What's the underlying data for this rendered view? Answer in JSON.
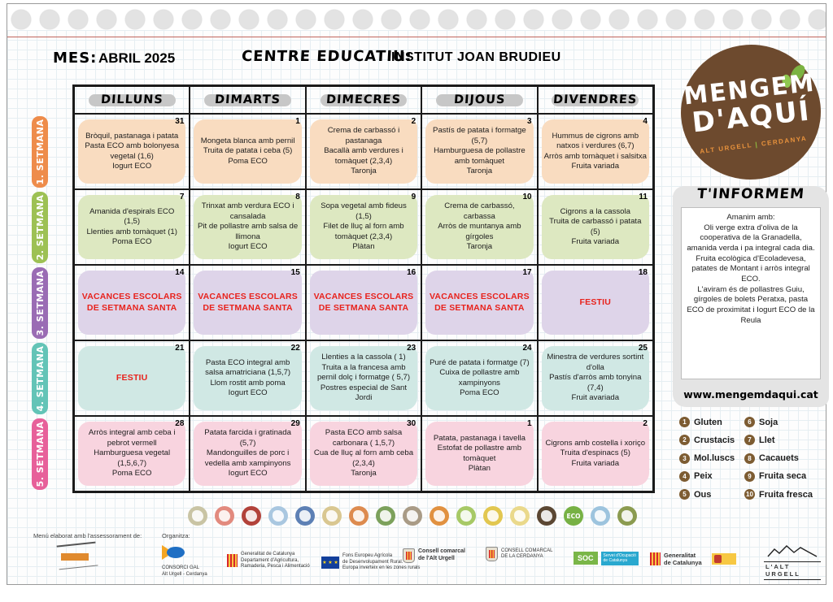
{
  "header": {
    "mes_label": "MES:",
    "mes_value": "ABRIL 2025",
    "centre_label": "CENTRE EDUCATIU:",
    "centre_value": "INSTITUT JOAN BRUDIEU"
  },
  "logo": {
    "line1": "MENGEM",
    "line2": "D'AQUÍ",
    "subtitle_left": "ALT URGELL",
    "subtitle_sep": "|",
    "subtitle_right": "CERDANYA"
  },
  "calendar": {
    "day_headers": [
      "DILLUNS",
      "DIMARTS",
      "DIMECRES",
      "DIJOUS",
      "DIVENDRES"
    ],
    "weeks": [
      {
        "label": "1. SETMANA",
        "tab_color": "#ee8c4b",
        "cell_color": "#f9dcc0",
        "days": [
          {
            "num": "31",
            "text": "Bròquil, pastanaga i patata\nPasta ECO amb bolonyesa vegetal (1,6)\nIogurt ECO"
          },
          {
            "num": "1",
            "text": "Mongeta blanca amb pernil\nTruita de patata i ceba (5)\nPoma ECO"
          },
          {
            "num": "2",
            "text": "Crema de carbassó i pastanaga\nBacallà amb verdures i tomàquet (2,3,4)\nTaronja"
          },
          {
            "num": "3",
            "text": "Pastís de patata i formatge (5,7)\nHamburguesa de pollastre amb tomàquet\nTaronja"
          },
          {
            "num": "4",
            "text": "Hummus de cigrons amb natxos i verdures (6,7)\nArròs amb tomàquet i salsitxa\nFruita variada"
          }
        ]
      },
      {
        "label": "2. SETMANA",
        "tab_color": "#9dc154",
        "cell_color": "#dde8c1",
        "days": [
          {
            "num": "7",
            "text": "Amanida d'espirals ECO (1,5)\nLlenties amb tomàquet (1)\nPoma ECO"
          },
          {
            "num": "8",
            "text": "Trinxat amb verdura ECO i cansalada\nPit de pollastre amb salsa de llimona\nIogurt ECO"
          },
          {
            "num": "9",
            "text": "Sopa vegetal amb fideus (1,5)\nFilet de lluç al forn amb tomàquet (2,3,4)\nPlàtan"
          },
          {
            "num": "10",
            "text": "Crema de carbassó, carbassa\nArròs de muntanya amb gírgoles\nTaronja"
          },
          {
            "num": "11",
            "text": "Cigrons a la cassola\nTruita de carbassó i patata (5)\nFruita variada"
          }
        ]
      },
      {
        "label": "3. SETMANA",
        "tab_color": "#9a6cb4",
        "cell_color": "#ded4e9",
        "days": [
          {
            "num": "14",
            "text": "VACANCES ESCOLARS DE SETMANA SANTA"
          },
          {
            "num": "15",
            "text": "VACANCES ESCOLARS DE SETMANA SANTA"
          },
          {
            "num": "16",
            "text": "VACANCES ESCOLARS DE SETMANA SANTA"
          },
          {
            "num": "17",
            "text": "VACANCES ESCOLARS DE SETMANA SANTA"
          },
          {
            "num": "18",
            "text": "FESTIU"
          }
        ]
      },
      {
        "label": "4. SETMANA",
        "tab_color": "#63c4b7",
        "cell_color": "#d0e8e4",
        "days": [
          {
            "num": "21",
            "text": "FESTIU"
          },
          {
            "num": "22",
            "text": "Pasta ECO integral amb salsa amatriciana (1,5,7)\nLlom rostit amb poma\nIogurt ECO"
          },
          {
            "num": "23",
            "text": "Llenties a la cassola ( 1)\nTruita a la francesa amb pernil dolç i formatge ( 5,7)\nPostres especial de Sant Jordi"
          },
          {
            "num": "24",
            "text": "Puré de patata i formatge (7)\nCuixa de pollastre amb xampinyons\nPoma ECO"
          },
          {
            "num": "25",
            "text": "Minestra de verdures sortint d'olla\nPastís d'arròs amb tonyina (7,4)\nFruit avariada"
          }
        ]
      },
      {
        "label": "5. SETMANA",
        "tab_color": "#e7609a",
        "cell_color": "#f8d4df",
        "days": [
          {
            "num": "28",
            "text": "Arròs integral amb ceba i pebrot vermell\nHamburguesa vegetal (1,5,6,7)\nPoma ECO"
          },
          {
            "num": "29",
            "text": "Patata farcida i gratinada (5,7)\nMandonguilles de porc i vedella amb xampinyons\nIogurt ECO"
          },
          {
            "num": "30",
            "text": "Pasta ECO amb salsa carbonara ( 1,5,7)\nCua de lluç al forn amb ceba (2,3,4)\nTaronja"
          },
          {
            "num": "1",
            "text": "Patata, pastanaga i tavella\nEstofat de pollastre amb tomàquet\nPlàtan"
          },
          {
            "num": "2",
            "text": "Cigrons amb costella i xoriço\nTruita d'espinacs (5)\nFruita variada"
          }
        ]
      }
    ]
  },
  "info": {
    "title": "T'INFORMEM",
    "body": "Amanim amb:\nOli verge extra d'oliva de la cooperativa de la Granadella, amanida verda i pa integral cada dia.\nFruita ecològica d'Ecoladevesa, patates de Montant i arròs integral ECO.\nL'aviram és de pollastres Guiu, gírgoles de bolets Peratxa, pasta ECO de proximitat i Iogurt ECO de la Reula",
    "website": "www.mengemdaqui.cat"
  },
  "legend": {
    "items": [
      {
        "num": "1",
        "label": "Gluten"
      },
      {
        "num": "2",
        "label": "Crustacis"
      },
      {
        "num": "3",
        "label": "Mol.luscs"
      },
      {
        "num": "4",
        "label": "Peix"
      },
      {
        "num": "5",
        "label": "Ous"
      },
      {
        "num": "6",
        "label": "Soja"
      },
      {
        "num": "7",
        "label": "Llet"
      },
      {
        "num": "8",
        "label": "Cacauets"
      },
      {
        "num": "9",
        "label": "Fruita seca"
      },
      {
        "num": "10",
        "label": "Fruita fresca"
      }
    ]
  },
  "food_icons": [
    {
      "name": "broccoli-icon",
      "color": "#c9c4a4"
    },
    {
      "name": "chicken-leg-icon",
      "color": "#e28a7e"
    },
    {
      "name": "meat-icon",
      "color": "#b2423a"
    },
    {
      "name": "fish-icon",
      "color": "#a9c7e0"
    },
    {
      "name": "sardines-icon",
      "color": "#5d80b5"
    },
    {
      "name": "pasta-icon",
      "color": "#d9c791"
    },
    {
      "name": "greens-icon",
      "color": "#dd8b4f"
    },
    {
      "name": "carrot-mushroom-icon",
      "color": "#7ca15c"
    },
    {
      "name": "legumes-icon",
      "color": "#a99b86"
    },
    {
      "name": "poultry-icon",
      "color": "#e19140"
    },
    {
      "name": "apple-icon",
      "color": "#a7c966"
    },
    {
      "name": "pear-icon",
      "color": "#e2c750"
    },
    {
      "name": "bread-icon",
      "color": "#ead98b"
    },
    {
      "name": "herbs-icon",
      "color": "#5b4733"
    },
    {
      "name": "eco-icon",
      "color": "#77b144",
      "text": "ECO"
    },
    {
      "name": "milk-jug-icon",
      "color": "#9dc4de"
    },
    {
      "name": "oil-bottle-icon",
      "color": "#8b9b50"
    }
  ],
  "footer": {
    "advisor_label": "Menú elaborat amb l'assessorament de:",
    "organitza_label": "Organitza:",
    "consorci": "CONSORCI  GAL\nAlt Urgell - Cerdanya",
    "dept_agricultura": "Generalitat de Catalunya\nDepartament d'Agricultura,\nRamaderia, Pesca i Alimentació",
    "eu_fund": "Fons Europeu Agrícola\nde Desenvolupament Rural.\nEuropa inverteix en les zones rurals",
    "eu_stars": "★ ★ ★",
    "consell_alt_urgell": "Consell comarcal\nde l'Alt Urgell",
    "consell_cerdanya": "CONSELL COMARCAL\nDE LA CERDANYA",
    "soc": "SOC",
    "soc_text": "Servei d'Ocupació\nde Catalunya",
    "gencat": "Generalitat\nde Catalunya",
    "alt_urgell": "L'ALT URGELL"
  }
}
